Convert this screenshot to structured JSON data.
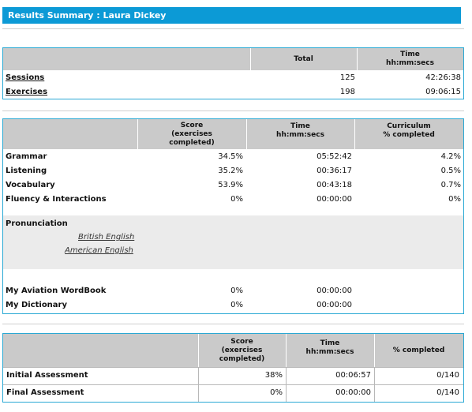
{
  "header": {
    "title": "Results Summary :  Laura Dickey"
  },
  "summary": {
    "columns": {
      "total": "Total",
      "time": "Time\nhh:mm:secs"
    },
    "rows": [
      {
        "label": "Sessions",
        "total": "125",
        "time": "42:26:38"
      },
      {
        "label": "Exercises",
        "total": "198",
        "time": "09:06:15"
      }
    ]
  },
  "skills": {
    "columns": {
      "score": "Score\n(exercises\ncompleted)",
      "time": "Time\nhh:mm:secs",
      "curriculum": "Curriculum\n% completed"
    },
    "rows": [
      {
        "label": "Grammar",
        "score": "34.5%",
        "time": "05:52:42",
        "curriculum": "4.2%"
      },
      {
        "label": "Listening",
        "score": "35.2%",
        "time": "00:36:17",
        "curriculum": "0.5%"
      },
      {
        "label": "Vocabulary",
        "score": "53.9%",
        "time": "00:43:18",
        "curriculum": "0.7%"
      },
      {
        "label": "Fluency & Interactions",
        "score": "0%",
        "time": "00:00:00",
        "curriculum": "0%"
      }
    ],
    "pronunciation": {
      "label": "Pronunciation",
      "links": [
        "British English",
        "American English"
      ]
    },
    "extra_rows": [
      {
        "label": "My Aviation WordBook",
        "score": "0%",
        "time": "00:00:00"
      },
      {
        "label": "My Dictionary",
        "score": "0%",
        "time": "00:00:00"
      }
    ]
  },
  "assessment": {
    "columns": {
      "score": "Score\n(exercises\ncompleted)",
      "time": "Time\nhh:mm:secs",
      "completed": "% completed"
    },
    "rows": [
      {
        "label": "Initial Assessment",
        "score": "38%",
        "time": "00:06:57",
        "completed": "0/140"
      },
      {
        "label": "Final Assessment",
        "score": "0%",
        "time": "00:00:00",
        "completed": "0/140"
      }
    ]
  }
}
